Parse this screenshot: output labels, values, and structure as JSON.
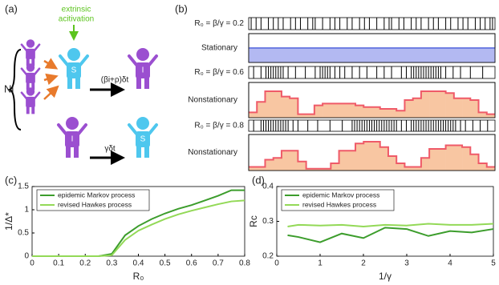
{
  "panel_labels": [
    "(a)",
    "(b)",
    "(c)",
    "(d)"
  ],
  "diagram": {
    "activation": [
      "extrinsic",
      "acitivation"
    ],
    "group_label": "Ni",
    "infection_rate": "(βi+ρ)δt",
    "recovery_rate": "γδt",
    "susceptible": "S",
    "infected": "I"
  },
  "time_range": [
    0,
    100
  ],
  "intensity_range": [
    0,
    1
  ],
  "rasters": [
    {
      "label": "R₀ = β/γ = 0.2",
      "events": [
        1,
        3,
        5,
        8,
        10,
        12,
        14,
        17,
        19,
        21,
        24,
        26,
        27,
        30,
        33,
        35,
        37,
        40,
        42,
        45,
        47,
        49,
        52,
        55,
        57,
        58,
        61,
        63,
        66,
        68,
        70,
        73,
        75,
        77,
        80,
        82,
        85,
        87,
        89,
        92,
        94,
        96,
        98,
        99
      ]
    },
    {
      "label": "R₀ = β/γ = 0.6",
      "events": [
        2,
        5,
        7,
        8,
        9,
        10,
        11,
        12,
        13,
        14,
        16,
        19,
        23,
        27,
        29,
        30,
        31,
        32,
        33,
        35,
        37,
        39,
        42,
        45,
        48,
        52,
        55,
        58,
        62,
        64,
        66,
        67,
        68,
        69,
        70,
        71,
        72,
        73,
        74,
        75,
        76,
        77,
        78,
        80,
        83,
        86,
        90,
        95
      ]
    },
    {
      "label": "R₀ = β/γ = 0.8",
      "events": [
        2,
        5,
        6,
        7,
        8,
        9,
        10,
        11,
        12,
        13,
        14,
        15,
        16,
        18,
        20,
        24,
        28,
        33,
        38,
        42,
        43,
        44,
        45,
        46,
        47,
        48,
        49,
        50,
        51,
        52,
        53,
        54,
        55,
        56,
        57,
        58,
        59,
        60,
        62,
        64,
        66,
        67,
        68,
        69,
        70,
        71,
        72,
        73,
        74,
        75,
        76,
        77,
        78,
        79,
        80,
        81,
        82,
        83,
        84,
        86,
        88,
        91,
        94,
        97
      ]
    }
  ],
  "intensity": [
    {
      "label": "Stationary",
      "fill": "#b3b9f2",
      "stroke": "#6f7fe2",
      "values": [
        0.5
      ]
    },
    {
      "label": "Nonstationary",
      "fill": "#f8c6a2",
      "stroke": "#ef5a68",
      "values": [
        0.15,
        0.45,
        0.75,
        0.75,
        0.6,
        0.55,
        0.1,
        0.1,
        0.35,
        0.4,
        0.4,
        0.4,
        0.4,
        0.35,
        0.3,
        0.3,
        0.25,
        0.25,
        0.2,
        0.5,
        0.55,
        0.75,
        0.75,
        0.75,
        0.7,
        0.55,
        0.55,
        0.5,
        0.15,
        0.1
      ]
    },
    {
      "label": "Nonstationary",
      "fill": "#f8c6a2",
      "stroke": "#ef5a68",
      "values": [
        0.1,
        0.1,
        0.3,
        0.35,
        0.55,
        0.55,
        0.25,
        0.05,
        0.05,
        0.05,
        0.2,
        0.55,
        0.55,
        0.75,
        0.8,
        0.8,
        0.65,
        0.4,
        0.2,
        0.1,
        0.1,
        0.35,
        0.6,
        0.6,
        0.7,
        0.7,
        0.65,
        0.45,
        0.2,
        0.1
      ]
    }
  ],
  "chart_data": [
    {
      "type": "line",
      "xlabel": "R₀",
      "ylabel": "1/Δ*",
      "legend": "upper left",
      "x": [
        0,
        0.05,
        0.1,
        0.15,
        0.2,
        0.25,
        0.3,
        0.35,
        0.4,
        0.45,
        0.5,
        0.55,
        0.6,
        0.65,
        0.7,
        0.75,
        0.8
      ],
      "xlim": [
        0,
        0.8
      ],
      "xticks": [
        0,
        0.1,
        0.2,
        0.3,
        0.4,
        0.5,
        0.6,
        0.7,
        0.8
      ],
      "ylim": [
        0,
        1.5
      ],
      "yticks": [
        0,
        0.5,
        1,
        1.5
      ],
      "series": [
        {
          "name": "epidemic Markov process",
          "color": "#3c9d2c",
          "values": [
            0,
            0,
            0,
            0,
            0,
            0,
            0.05,
            0.45,
            0.65,
            0.8,
            0.92,
            1.02,
            1.1,
            1.2,
            1.3,
            1.42,
            1.42
          ]
        },
        {
          "name": "revised Hawkes process",
          "color": "#93d957",
          "values": [
            0,
            0,
            0,
            0,
            0,
            0,
            0.02,
            0.35,
            0.55,
            0.68,
            0.8,
            0.9,
            0.98,
            1.05,
            1.12,
            1.18,
            1.2
          ]
        }
      ]
    },
    {
      "type": "line",
      "xlabel": "1/γ",
      "ylabel": "Rc",
      "legend": "upper left",
      "x": [
        0.25,
        0.5,
        1,
        1.5,
        2,
        2.5,
        3,
        3.5,
        4,
        4.5,
        5
      ],
      "xlim": [
        0,
        5
      ],
      "xticks": [
        0,
        1,
        2,
        3,
        4,
        5
      ],
      "ylim": [
        0.2,
        0.4
      ],
      "yticks": [
        0.2,
        0.3,
        0.4
      ],
      "series": [
        {
          "name": "epidemic Markov process",
          "color": "#3c9d2c",
          "values": [
            0.26,
            0.255,
            0.24,
            0.265,
            0.252,
            0.282,
            0.278,
            0.258,
            0.272,
            0.268,
            0.278
          ]
        },
        {
          "name": "revised Hawkes process",
          "color": "#93d957",
          "values": [
            0.285,
            0.29,
            0.288,
            0.29,
            0.285,
            0.29,
            0.288,
            0.293,
            0.29,
            0.29,
            0.293
          ]
        }
      ]
    }
  ]
}
